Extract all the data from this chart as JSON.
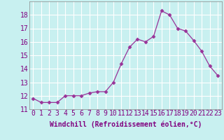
{
  "x": [
    0,
    1,
    2,
    3,
    4,
    5,
    6,
    7,
    8,
    9,
    10,
    11,
    12,
    13,
    14,
    15,
    16,
    17,
    18,
    19,
    20,
    21,
    22,
    23
  ],
  "y": [
    11.8,
    11.5,
    11.5,
    11.5,
    12.0,
    12.0,
    12.0,
    12.2,
    12.3,
    12.3,
    13.0,
    14.4,
    15.6,
    16.2,
    16.0,
    16.4,
    18.3,
    18.0,
    17.0,
    16.8,
    16.1,
    15.3,
    14.2,
    13.5
  ],
  "line_color": "#993399",
  "marker": "D",
  "marker_size": 2.5,
  "xlabel": "Windchill (Refroidissement éolien,°C)",
  "xlabel_fontsize": 7,
  "bg_color": "#c8f0f0",
  "grid_color": "#ffffff",
  "tick_label_fontsize": 7,
  "ylim": [
    11,
    19
  ],
  "yticks": [
    11,
    12,
    13,
    14,
    15,
    16,
    17,
    18
  ],
  "xlim": [
    -0.5,
    23.5
  ]
}
